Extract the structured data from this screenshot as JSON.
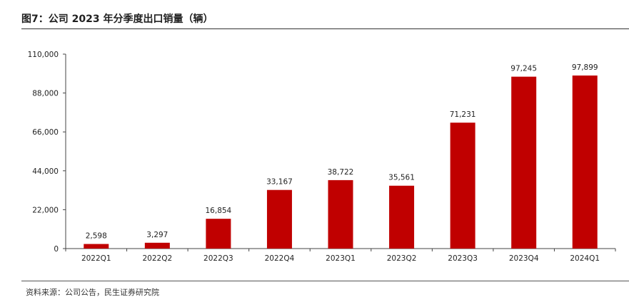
{
  "figure": {
    "title": "图7：公司 2023 年分季度出口销量（辆）",
    "source": "资料来源：公司公告，民生证券研究院"
  },
  "chart_data": {
    "type": "bar",
    "title": "图7：公司 2023 年分季度出口销量（辆）",
    "xlabel": "",
    "ylabel": "",
    "categories": [
      "2022Q1",
      "2022Q2",
      "2022Q3",
      "2022Q4",
      "2023Q1",
      "2023Q2",
      "2023Q3",
      "2023Q4",
      "2024Q1"
    ],
    "values": [
      2598,
      3297,
      16854,
      33167,
      38722,
      35561,
      71231,
      97245,
      97899
    ],
    "value_labels": [
      "2,598",
      "3,297",
      "16,854",
      "33,167",
      "38,722",
      "35,561",
      "71,231",
      "97,245",
      "97,899"
    ],
    "ylim": [
      0,
      110000
    ],
    "yticks": [
      0,
      22000,
      44000,
      66000,
      88000,
      110000
    ],
    "ytick_labels": [
      "0",
      "22,000",
      "44,000",
      "66,000",
      "88,000",
      "110,000"
    ],
    "bar_color": "#C00000",
    "grid": false,
    "legend": "none"
  }
}
